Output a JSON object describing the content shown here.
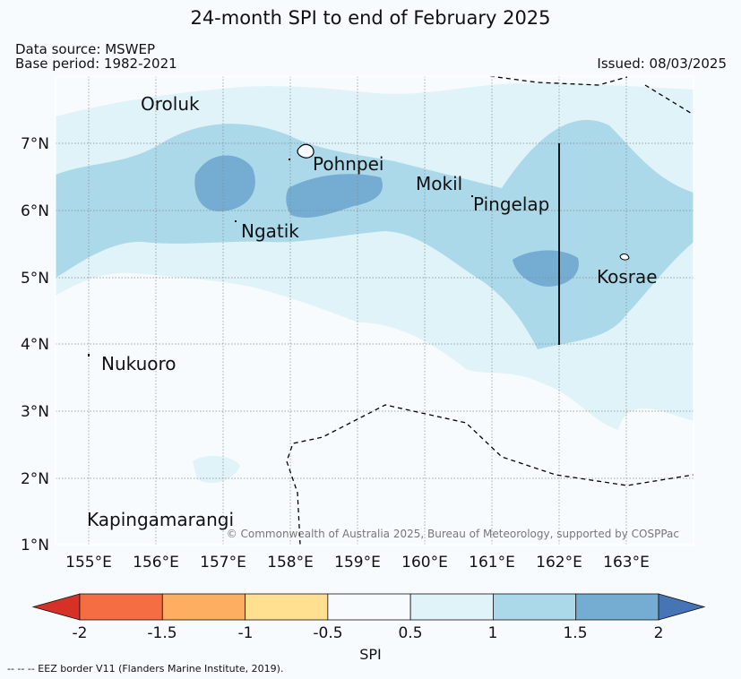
{
  "title": "24-month SPI to end of February 2025",
  "data_source": "Data source: MSWEP",
  "base_period": "Base period: 1982-2021",
  "issued": "Issued: 08/03/2025",
  "copyright": "© Commonwealth of Australia 2025, Bureau of Meteorology, supported by COSPPac",
  "footnote": "-- -- -- EEZ border V11 (Flanders Marine Institute, 2019).",
  "colorbar": {
    "label": "SPI",
    "ticks": [
      "-2",
      "-1.5",
      "-1",
      "-0.5",
      "0.5",
      "1",
      "1.5",
      "2"
    ],
    "colors": [
      "#d73027",
      "#f46d43",
      "#fdae61",
      "#fee090",
      "#f7fbfd",
      "#e0f3f8",
      "#abd9e9",
      "#74add1",
      "#4575b4"
    ]
  },
  "axes": {
    "lon_labels": [
      "155°E",
      "156°E",
      "157°E",
      "158°E",
      "159°E",
      "160°E",
      "161°E",
      "162°E",
      "163°E"
    ],
    "lat_labels": [
      "7°N",
      "6°N",
      "5°N",
      "4°N",
      "3°N",
      "2°N",
      "1°N"
    ]
  },
  "places": [
    {
      "name": "Oroluk"
    },
    {
      "name": "Pohnpei"
    },
    {
      "name": "Mokil"
    },
    {
      "name": "Pingelap"
    },
    {
      "name": "Ngatik"
    },
    {
      "name": "Kosrae"
    },
    {
      "name": "Nukuoro"
    },
    {
      "name": "Kapingamarangi"
    }
  ]
}
